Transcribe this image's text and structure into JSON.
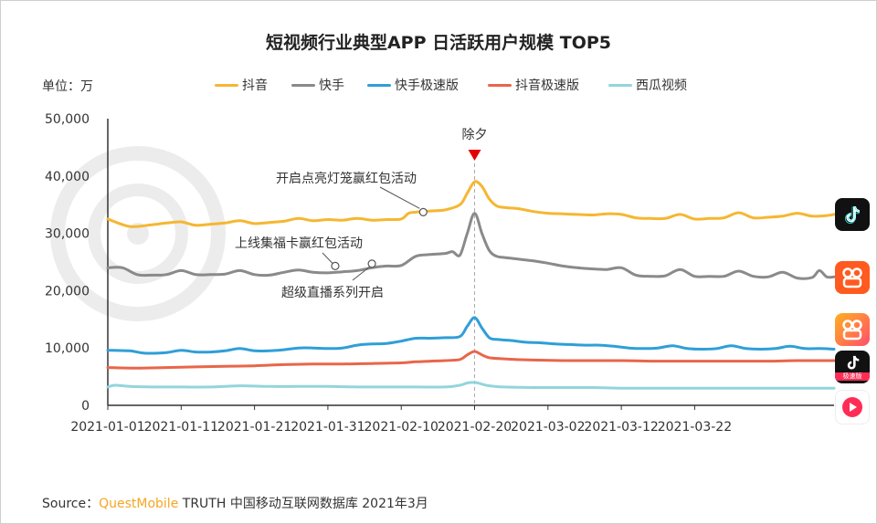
{
  "chart_data": {
    "type": "line",
    "title": "短视频行业典型APP 日活跃用户规模 TOP5",
    "unit": "单位：万",
    "xlabel": "",
    "ylabel": "",
    "ylim": [
      0,
      50000
    ],
    "yticks": [
      "50,000",
      "40,000",
      "30,000",
      "20,000",
      "10,000",
      "0"
    ],
    "xticks": [
      "2021-01-01",
      "2021-01-11",
      "2021-01-21",
      "2021-01-31",
      "2021-02-10",
      "2021-02-20",
      "2021-03-02",
      "2021-03-12",
      "2021-03-22"
    ],
    "x_start": "2021-01-01",
    "x_end": "2021-03-31",
    "legend_position": "top",
    "grid": false,
    "series": [
      {
        "name": "抖音",
        "color": "#f5b731",
        "points": [
          [
            0,
            32500
          ],
          [
            3,
            31200
          ],
          [
            6,
            31500
          ],
          [
            8,
            31800
          ],
          [
            10,
            32000
          ],
          [
            12,
            31400
          ],
          [
            14,
            31600
          ],
          [
            16,
            31800
          ],
          [
            18,
            32200
          ],
          [
            20,
            31700
          ],
          [
            22,
            31900
          ],
          [
            24,
            32100
          ],
          [
            26,
            32600
          ],
          [
            28,
            32200
          ],
          [
            30,
            32400
          ],
          [
            32,
            32300
          ],
          [
            34,
            32600
          ],
          [
            36,
            32300
          ],
          [
            38,
            32400
          ],
          [
            40,
            32500
          ],
          [
            41,
            33500
          ],
          [
            42,
            33700
          ],
          [
            44,
            33900
          ],
          [
            46,
            34100
          ],
          [
            48,
            35000
          ],
          [
            49,
            37000
          ],
          [
            50,
            39000
          ],
          [
            51,
            38200
          ],
          [
            52,
            36000
          ],
          [
            53,
            34800
          ],
          [
            54,
            34500
          ],
          [
            56,
            34300
          ],
          [
            58,
            33800
          ],
          [
            60,
            33500
          ],
          [
            62,
            33400
          ],
          [
            64,
            33300
          ],
          [
            66,
            33200
          ],
          [
            68,
            33400
          ],
          [
            70,
            33300
          ],
          [
            72,
            32700
          ],
          [
            74,
            32600
          ],
          [
            76,
            32600
          ],
          [
            78,
            33300
          ],
          [
            80,
            32500
          ],
          [
            82,
            32600
          ],
          [
            84,
            32700
          ],
          [
            86,
            33600
          ],
          [
            88,
            32700
          ],
          [
            90,
            32800
          ],
          [
            92,
            33000
          ],
          [
            94,
            33500
          ],
          [
            96,
            33000
          ],
          [
            98,
            33100
          ],
          [
            99,
            33300
          ]
        ]
      },
      {
        "name": "快手",
        "color": "#8a8a8a",
        "points": [
          [
            0,
            24000
          ],
          [
            2,
            24000
          ],
          [
            4,
            22800
          ],
          [
            6,
            22700
          ],
          [
            8,
            22800
          ],
          [
            10,
            23500
          ],
          [
            12,
            22800
          ],
          [
            14,
            22800
          ],
          [
            16,
            22900
          ],
          [
            18,
            23500
          ],
          [
            20,
            22800
          ],
          [
            22,
            22700
          ],
          [
            24,
            23200
          ],
          [
            26,
            23600
          ],
          [
            28,
            23200
          ],
          [
            30,
            23100
          ],
          [
            32,
            23300
          ],
          [
            34,
            23500
          ],
          [
            36,
            24000
          ],
          [
            38,
            24300
          ],
          [
            40,
            24400
          ],
          [
            42,
            26000
          ],
          [
            44,
            26300
          ],
          [
            46,
            26500
          ],
          [
            47,
            26800
          ],
          [
            48,
            26200
          ],
          [
            49,
            30000
          ],
          [
            50,
            33500
          ],
          [
            51,
            30000
          ],
          [
            52,
            27000
          ],
          [
            53,
            26000
          ],
          [
            54,
            25800
          ],
          [
            56,
            25500
          ],
          [
            58,
            25200
          ],
          [
            60,
            24800
          ],
          [
            62,
            24300
          ],
          [
            64,
            24000
          ],
          [
            66,
            23800
          ],
          [
            68,
            23700
          ],
          [
            70,
            24000
          ],
          [
            72,
            22700
          ],
          [
            74,
            22500
          ],
          [
            76,
            22600
          ],
          [
            78,
            23700
          ],
          [
            80,
            22500
          ],
          [
            82,
            22500
          ],
          [
            84,
            22500
          ],
          [
            86,
            23400
          ],
          [
            88,
            22500
          ],
          [
            90,
            22400
          ],
          [
            92,
            23200
          ],
          [
            94,
            22200
          ],
          [
            96,
            22300
          ],
          [
            97,
            23500
          ],
          [
            98,
            22400
          ],
          [
            99,
            22400
          ]
        ]
      },
      {
        "name": "快手极速版",
        "color": "#2f9fd7",
        "points": [
          [
            0,
            9600
          ],
          [
            3,
            9500
          ],
          [
            5,
            9100
          ],
          [
            8,
            9200
          ],
          [
            10,
            9600
          ],
          [
            12,
            9300
          ],
          [
            14,
            9300
          ],
          [
            16,
            9500
          ],
          [
            18,
            9900
          ],
          [
            20,
            9500
          ],
          [
            22,
            9500
          ],
          [
            24,
            9700
          ],
          [
            26,
            10000
          ],
          [
            28,
            10000
          ],
          [
            30,
            9900
          ],
          [
            32,
            10000
          ],
          [
            34,
            10500
          ],
          [
            36,
            10700
          ],
          [
            38,
            10800
          ],
          [
            40,
            11200
          ],
          [
            42,
            11700
          ],
          [
            44,
            11700
          ],
          [
            46,
            11800
          ],
          [
            48,
            12000
          ],
          [
            49,
            13800
          ],
          [
            50,
            15300
          ],
          [
            51,
            13500
          ],
          [
            52,
            11800
          ],
          [
            53,
            11500
          ],
          [
            55,
            11300
          ],
          [
            57,
            11000
          ],
          [
            59,
            10900
          ],
          [
            61,
            10700
          ],
          [
            63,
            10600
          ],
          [
            65,
            10500
          ],
          [
            67,
            10500
          ],
          [
            69,
            10300
          ],
          [
            71,
            10000
          ],
          [
            73,
            9900
          ],
          [
            75,
            10000
          ],
          [
            77,
            10400
          ],
          [
            79,
            9900
          ],
          [
            81,
            9800
          ],
          [
            83,
            9900
          ],
          [
            85,
            10400
          ],
          [
            87,
            9900
          ],
          [
            89,
            9800
          ],
          [
            91,
            9900
          ],
          [
            93,
            10300
          ],
          [
            95,
            9900
          ],
          [
            97,
            9900
          ],
          [
            99,
            9800
          ]
        ]
      },
      {
        "name": "抖音极速版",
        "color": "#e8664a",
        "points": [
          [
            0,
            6600
          ],
          [
            4,
            6500
          ],
          [
            8,
            6600
          ],
          [
            12,
            6700
          ],
          [
            16,
            6800
          ],
          [
            20,
            6900
          ],
          [
            24,
            7100
          ],
          [
            28,
            7200
          ],
          [
            32,
            7200
          ],
          [
            36,
            7300
          ],
          [
            40,
            7400
          ],
          [
            42,
            7600
          ],
          [
            44,
            7700
          ],
          [
            46,
            7800
          ],
          [
            48,
            8000
          ],
          [
            49,
            8800
          ],
          [
            50,
            9400
          ],
          [
            51,
            8800
          ],
          [
            52,
            8300
          ],
          [
            54,
            8100
          ],
          [
            58,
            7900
          ],
          [
            62,
            7800
          ],
          [
            66,
            7800
          ],
          [
            70,
            7800
          ],
          [
            74,
            7700
          ],
          [
            78,
            7700
          ],
          [
            82,
            7700
          ],
          [
            86,
            7700
          ],
          [
            90,
            7700
          ],
          [
            94,
            7800
          ],
          [
            99,
            7800
          ]
        ]
      },
      {
        "name": "西瓜视频",
        "color": "#93d5db",
        "points": [
          [
            0,
            3200
          ],
          [
            1,
            3500
          ],
          [
            3,
            3300
          ],
          [
            6,
            3200
          ],
          [
            10,
            3200
          ],
          [
            14,
            3200
          ],
          [
            18,
            3400
          ],
          [
            22,
            3300
          ],
          [
            26,
            3300
          ],
          [
            30,
            3300
          ],
          [
            34,
            3200
          ],
          [
            38,
            3200
          ],
          [
            42,
            3200
          ],
          [
            46,
            3200
          ],
          [
            48,
            3500
          ],
          [
            49,
            3900
          ],
          [
            50,
            4000
          ],
          [
            51,
            3700
          ],
          [
            52,
            3400
          ],
          [
            54,
            3200
          ],
          [
            58,
            3100
          ],
          [
            62,
            3100
          ],
          [
            66,
            3100
          ],
          [
            70,
            3000
          ],
          [
            74,
            3000
          ],
          [
            78,
            3000
          ],
          [
            82,
            3000
          ],
          [
            86,
            3000
          ],
          [
            90,
            3000
          ],
          [
            94,
            3000
          ],
          [
            99,
            3000
          ]
        ]
      }
    ],
    "annotations": [
      {
        "label": "除夕",
        "x": 50,
        "type": "marker"
      },
      {
        "label": "开启点亮灯笼赢红包活动",
        "x": 43,
        "y": 33700,
        "series": "抖音"
      },
      {
        "label": "上线集福卡赢红包活动",
        "x": 31,
        "y": 24300,
        "series": "快手"
      },
      {
        "label": "超级直播系列开启",
        "x": 36,
        "y": 24700,
        "series": "快手"
      }
    ]
  },
  "app_icons": [
    "douyin-icon",
    "kuaishou-icon",
    "kuaishou-lite-icon",
    "douyin-lite-icon",
    "xigua-icon"
  ],
  "source": {
    "prefix": "Source：",
    "brand": "QuestMobile",
    "suffix": " TRUTH 中国移动互联网数据库 2021年3月"
  },
  "douyin_lite_badge": "极速版"
}
